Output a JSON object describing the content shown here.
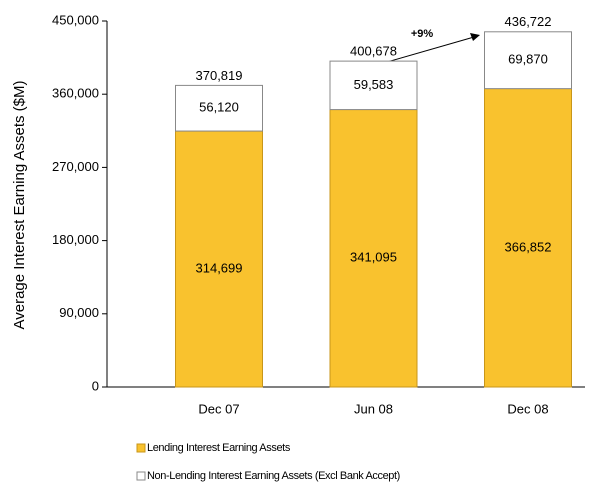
{
  "chart_data": {
    "type": "stacked_bar",
    "y_label": "Average Interest Earning Assets ($M)",
    "categories": [
      "Dec 07",
      "Jun 08",
      "Dec 08"
    ],
    "series": [
      {
        "name": "Lending Interest Earning Assets",
        "color": "#f9c22e",
        "values": [
          314699,
          341095,
          366852
        ],
        "value_labels": [
          "314,699",
          "341,095",
          "366,852"
        ]
      },
      {
        "name": "Non-Lending Interest Earning Assets (Excl Bank Accept)",
        "color": "#ffffff",
        "values": [
          56120,
          59583,
          69870
        ],
        "value_labels": [
          "56,120",
          "59,583",
          "69,870"
        ]
      }
    ],
    "totals": [
      370819,
      400678,
      436722
    ],
    "total_labels": [
      "370,819",
      "400,678",
      "436,722"
    ],
    "annotation": "+9%",
    "ylim": [
      0,
      450000
    ],
    "yticks": [
      0,
      {
        "value": 90000,
        "label": "90,000"
      },
      {
        "value": 180000,
        "label": "180,000"
      },
      {
        "value": 270000,
        "label": "270,000"
      },
      {
        "value": 360000,
        "label": "360,000"
      },
      {
        "value": 450000,
        "label": "450,000"
      }
    ]
  }
}
